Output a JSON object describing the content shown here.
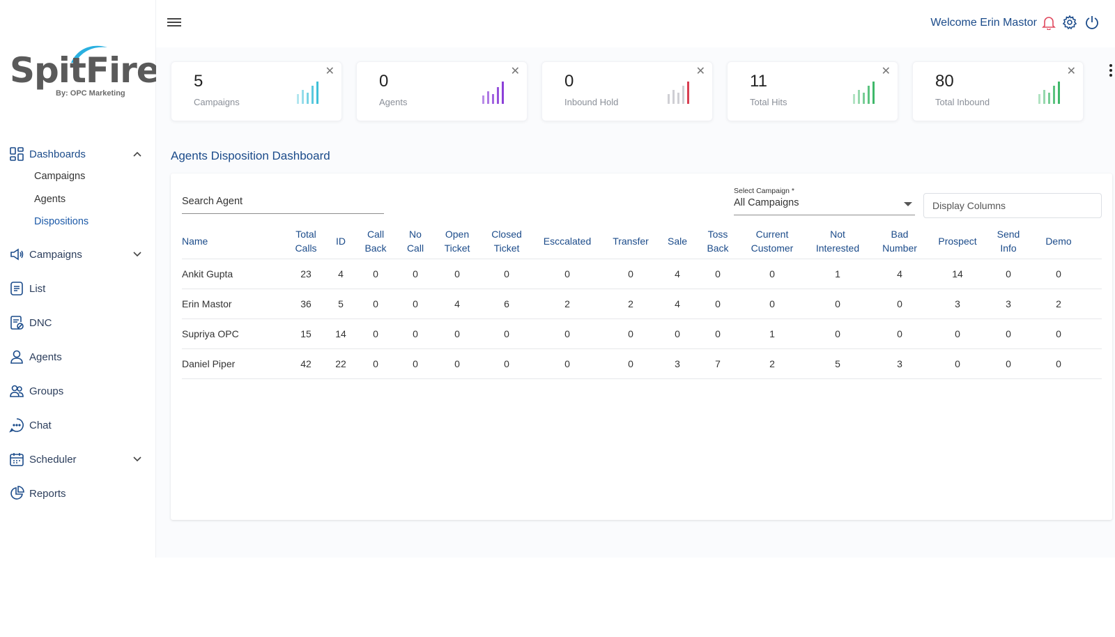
{
  "brand": {
    "name": "SpitFire",
    "tagline": "By: OPC Marketing"
  },
  "header": {
    "welcome": "Welcome Erin Mastor"
  },
  "sidebar": {
    "items": [
      {
        "label": "Dashboards",
        "icon": "dashboard-icon",
        "expanded": true
      },
      {
        "label": "Campaigns",
        "icon": "megaphone-icon",
        "expandable": true
      },
      {
        "label": "List",
        "icon": "list-icon"
      },
      {
        "label": "DNC",
        "icon": "dnc-icon"
      },
      {
        "label": "Agents",
        "icon": "user-icon"
      },
      {
        "label": "Groups",
        "icon": "groups-icon"
      },
      {
        "label": "Chat",
        "icon": "chat-icon"
      },
      {
        "label": "Scheduler",
        "icon": "calendar-icon",
        "expandable": true
      },
      {
        "label": "Reports",
        "icon": "pie-chart-icon"
      }
    ],
    "dashboard_sub": [
      "Campaigns",
      "Agents",
      "Dispositions"
    ],
    "active_sub": "Dispositions"
  },
  "stats": [
    {
      "value": "5",
      "label": "Campaigns",
      "color": "#3fc0d8"
    },
    {
      "value": "0",
      "label": "Agents",
      "color": "#8b3fd8"
    },
    {
      "value": "0",
      "label": "Inbound Hold",
      "color": "#d83f52"
    },
    {
      "value": "11",
      "label": "Total Hits",
      "color": "#3fb86a"
    },
    {
      "value": "80",
      "label": "Total Inbound",
      "color": "#3fb86a"
    }
  ],
  "section": {
    "title": "Agents Disposition Dashboard"
  },
  "filters": {
    "search_placeholder": "Search Agent",
    "select_label": "Select Campaign *",
    "select_value": "All Campaigns",
    "display_columns": "Display Columns"
  },
  "table": {
    "headers": [
      [
        "Name"
      ],
      [
        "Total",
        "Calls"
      ],
      [
        "ID"
      ],
      [
        "Call",
        "Back"
      ],
      [
        "No",
        "Call"
      ],
      [
        "Open",
        "Ticket"
      ],
      [
        "Closed",
        "Ticket"
      ],
      [
        "Esccalated"
      ],
      [
        "Transfer"
      ],
      [
        "Sale"
      ],
      [
        "Toss",
        "Back"
      ],
      [
        "Current",
        "Customer"
      ],
      [
        "Not",
        "Interested"
      ],
      [
        "Bad",
        "Number"
      ],
      [
        "Prospect"
      ],
      [
        "Send",
        "Info"
      ],
      [
        "Demo"
      ]
    ],
    "rows": [
      [
        "Ankit Gupta",
        "23",
        "4",
        "0",
        "0",
        "0",
        "0",
        "0",
        "0",
        "4",
        "0",
        "0",
        "1",
        "4",
        "14",
        "0",
        "0"
      ],
      [
        "Erin Mastor",
        "36",
        "5",
        "0",
        "0",
        "4",
        "6",
        "2",
        "2",
        "4",
        "0",
        "0",
        "0",
        "0",
        "3",
        "3",
        "2"
      ],
      [
        "Supriya OPC",
        "15",
        "14",
        "0",
        "0",
        "0",
        "0",
        "0",
        "0",
        "0",
        "0",
        "1",
        "0",
        "0",
        "0",
        "0",
        "0"
      ],
      [
        "Daniel Piper",
        "42",
        "22",
        "0",
        "0",
        "0",
        "0",
        "0",
        "0",
        "3",
        "7",
        "2",
        "5",
        "3",
        "0",
        "0",
        "0"
      ]
    ]
  }
}
